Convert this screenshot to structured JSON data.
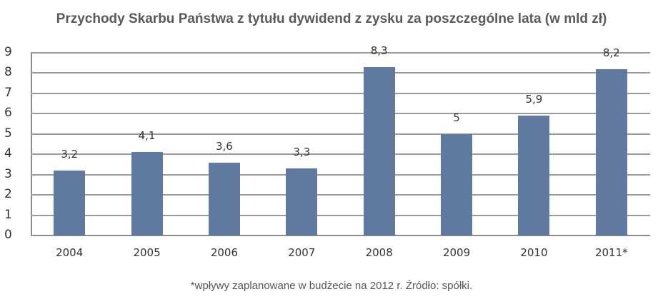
{
  "chart_data": {
    "type": "bar",
    "title": "Przychody Skarbu Państwa z tytułu dywidend z zysku za poszczególne lata (w mld zł)",
    "categories": [
      "2004",
      "2005",
      "2006",
      "2007",
      "2008",
      "2009",
      "2010",
      "2011*"
    ],
    "values": [
      3.2,
      4.1,
      3.6,
      3.3,
      8.3,
      5.0,
      5.9,
      8.2
    ],
    "value_labels": [
      "3,2",
      "4,1",
      "3,6",
      "3,3",
      "8,3",
      "5",
      "5,9",
      "8,2"
    ],
    "xlabel": "",
    "ylabel": "",
    "ylim": [
      0,
      9
    ],
    "yticks": [
      "0",
      "1",
      "2",
      "3",
      "4",
      "5",
      "6",
      "7",
      "8",
      "9"
    ],
    "grid": true,
    "legend": null,
    "bar_color": "#5f7a9e",
    "annotations": [
      "*wpływy zaplanowane w budżecie na 2012 r. Źródło: spółki."
    ]
  },
  "footer": {
    "note": "*wpływy zaplanowane w budżecie na 2012 r. Źródło: spółki."
  }
}
